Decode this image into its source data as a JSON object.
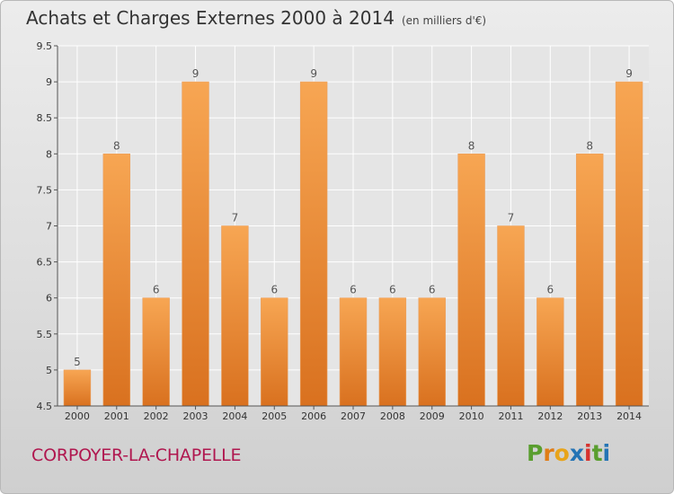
{
  "header": {
    "title": "Achats et Charges Externes 2000 à 2014",
    "unit": "(en milliers d'€)"
  },
  "footer": {
    "town": "CORPOYER-LA-CHAPELLE",
    "logo_letters": [
      "P",
      "r",
      "o",
      "x",
      "i",
      "t",
      "i"
    ],
    "logo_colors": [
      "#5a9e2f",
      "#e07d16",
      "#e8a41a",
      "#2474b5",
      "#d6322e",
      "#5a9e2f",
      "#2474b5"
    ]
  },
  "colors": {
    "bar_light": "#f7a653",
    "bar_dark": "#d9711f",
    "grid": "#ffffff",
    "plot_bg": "#e5e5e5"
  },
  "chart_data": {
    "type": "bar",
    "categories": [
      "2000",
      "2001",
      "2002",
      "2003",
      "2004",
      "2005",
      "2006",
      "2007",
      "2008",
      "2009",
      "2010",
      "2011",
      "2012",
      "2013",
      "2014"
    ],
    "values": [
      5,
      8,
      6,
      9,
      7,
      6,
      9,
      6,
      6,
      6,
      8,
      7,
      6,
      8,
      9
    ],
    "data_labels": [
      "5",
      "8",
      "6",
      "9",
      "7",
      "6",
      "9",
      "6",
      "6",
      "6",
      "8",
      "7",
      "6",
      "8",
      "9"
    ],
    "ylim": [
      4.5,
      9.5
    ],
    "yticks": [
      "4.5",
      "5",
      "5.5",
      "6",
      "6.5",
      "7",
      "7.5",
      "8",
      "8.5",
      "9",
      "9.5"
    ],
    "grid": true
  }
}
